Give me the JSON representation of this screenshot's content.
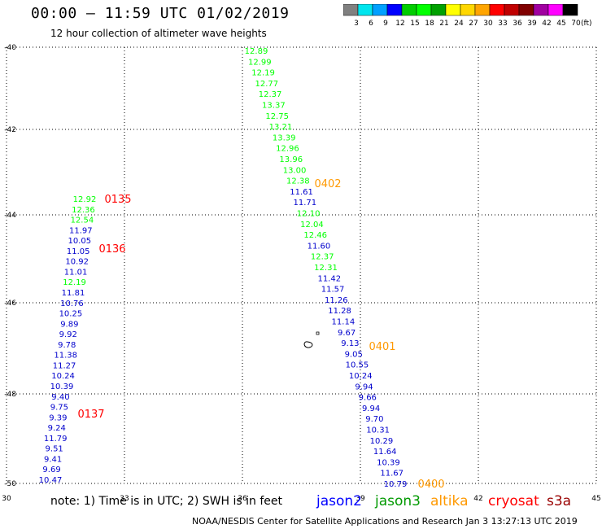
{
  "title": "00:00 – 11:59 UTC 01/02/2019",
  "subtitle": "12 hour collection of altimeter wave heights",
  "colorbar": {
    "labels": [
      "3",
      "6",
      "9",
      "12",
      "15",
      "18",
      "21",
      "24",
      "27",
      "30",
      "33",
      "36",
      "39",
      "42",
      "45",
      "70"
    ],
    "unit": "(ft)",
    "colors": [
      "#808080",
      "#00e5ee",
      "#00a0ff",
      "#0000ff",
      "#00cd00",
      "#00ff00",
      "#00a000",
      "#ffff00",
      "#ffd700",
      "#ffa500",
      "#ff0000",
      "#c00000",
      "#800000",
      "#a000a0",
      "#ff00ff",
      "#000000"
    ]
  },
  "axes": {
    "x_ticks": [
      "30",
      "33",
      "36",
      "39",
      "42",
      "45"
    ],
    "y_ticks": [
      "-40",
      "-42",
      "-44",
      "-46",
      "-48",
      "-50"
    ]
  },
  "tracks": [
    {
      "points": [
        {
          "v": "12.89",
          "c": "#00ff00"
        },
        {
          "v": "12.99",
          "c": "#00ff00"
        },
        {
          "v": "12.19",
          "c": "#00ff00"
        },
        {
          "v": "12.77",
          "c": "#00ff00"
        },
        {
          "v": "12.37",
          "c": "#00ff00"
        },
        {
          "v": "13.37",
          "c": "#00ff00"
        },
        {
          "v": "12.75",
          "c": "#00ff00"
        },
        {
          "v": "13.21",
          "c": "#00ff00"
        },
        {
          "v": "13.39",
          "c": "#00ff00"
        },
        {
          "v": "12.96",
          "c": "#00ff00"
        },
        {
          "v": "13.96",
          "c": "#00ff00"
        },
        {
          "v": "13.00",
          "c": "#00ff00"
        },
        {
          "v": "12.38",
          "c": "#00ff00"
        },
        {
          "v": "11.61",
          "c": "#0000cc"
        },
        {
          "v": "11.71",
          "c": "#0000cc"
        },
        {
          "v": "12.10",
          "c": "#00ff00"
        },
        {
          "v": "12.04",
          "c": "#00ff00"
        },
        {
          "v": "12.46",
          "c": "#00ff00"
        },
        {
          "v": "11.60",
          "c": "#0000cc"
        },
        {
          "v": "12.37",
          "c": "#00ff00"
        },
        {
          "v": "12.31",
          "c": "#00ff00"
        },
        {
          "v": "11.42",
          "c": "#0000cc"
        },
        {
          "v": "11.57",
          "c": "#0000cc"
        },
        {
          "v": "11.26",
          "c": "#0000cc"
        },
        {
          "v": "11.28",
          "c": "#0000cc"
        },
        {
          "v": "11.14",
          "c": "#0000cc"
        },
        {
          "v": "9.67",
          "c": "#0000cc"
        },
        {
          "v": "9.13",
          "c": "#0000cc"
        },
        {
          "v": "9.05",
          "c": "#0000cc"
        },
        {
          "v": "10.55",
          "c": "#0000cc"
        },
        {
          "v": "10.24",
          "c": "#0000cc"
        },
        {
          "v": "9.94",
          "c": "#0000cc"
        },
        {
          "v": "9.66",
          "c": "#0000cc"
        },
        {
          "v": "9.94",
          "c": "#0000cc"
        },
        {
          "v": "9.70",
          "c": "#0000cc"
        },
        {
          "v": "10.31",
          "c": "#0000cc"
        },
        {
          "v": "10.29",
          "c": "#0000cc"
        },
        {
          "v": "11.64",
          "c": "#0000cc"
        },
        {
          "v": "10.39",
          "c": "#0000cc"
        },
        {
          "v": "11.67",
          "c": "#0000cc"
        },
        {
          "v": "10.79",
          "c": "#0000cc"
        }
      ]
    },
    {
      "points": [
        {
          "v": "12.92",
          "c": "#00ff00"
        },
        {
          "v": "12.36",
          "c": "#00ff00"
        },
        {
          "v": "12.54",
          "c": "#00ff00"
        },
        {
          "v": "11.97",
          "c": "#0000cc"
        },
        {
          "v": "10.05",
          "c": "#0000cc"
        },
        {
          "v": "11.05",
          "c": "#0000cc"
        },
        {
          "v": "10.92",
          "c": "#0000cc"
        },
        {
          "v": "11.01",
          "c": "#0000cc"
        },
        {
          "v": "12.19",
          "c": "#00ff00"
        },
        {
          "v": "11.81",
          "c": "#0000cc"
        },
        {
          "v": "10.76",
          "c": "#0000cc"
        },
        {
          "v": "10.25",
          "c": "#0000cc"
        },
        {
          "v": "9.89",
          "c": "#0000cc"
        },
        {
          "v": "9.92",
          "c": "#0000cc"
        },
        {
          "v": "9.78",
          "c": "#0000cc"
        },
        {
          "v": "11.38",
          "c": "#0000cc"
        },
        {
          "v": "11.27",
          "c": "#0000cc"
        },
        {
          "v": "10.24",
          "c": "#0000cc"
        },
        {
          "v": "10.39",
          "c": "#0000cc"
        },
        {
          "v": "9.40",
          "c": "#0000cc"
        },
        {
          "v": "9.75",
          "c": "#0000cc"
        },
        {
          "v": "9.39",
          "c": "#0000cc"
        },
        {
          "v": "9.24",
          "c": "#0000cc"
        },
        {
          "v": "11.79",
          "c": "#0000cc"
        },
        {
          "v": "9.51",
          "c": "#0000cc"
        },
        {
          "v": "9.41",
          "c": "#0000cc"
        },
        {
          "v": "9.69",
          "c": "#0000cc"
        },
        {
          "v": "10.47",
          "c": "#0000cc"
        }
      ]
    }
  ],
  "time_labels": [
    {
      "text": "0402",
      "c": "#ff9900"
    },
    {
      "text": "0401",
      "c": "#ff9900"
    },
    {
      "text": "0400",
      "c": "#ff9900"
    },
    {
      "text": "0135",
      "c": "#ff0000"
    },
    {
      "text": "0136",
      "c": "#ff0000"
    },
    {
      "text": "0137",
      "c": "#ff0000"
    }
  ],
  "legend": {
    "note": "note:  1) Time is in UTC; 2) SWH is in feet",
    "satellites": [
      {
        "name": "jason2",
        "color": "#0000ff"
      },
      {
        "name": "jason3",
        "color": "#009900"
      },
      {
        "name": "altika",
        "color": "#ff9900"
      },
      {
        "name": "cryosat",
        "color": "#ff0000"
      },
      {
        "name": "s3a",
        "color": "#990000"
      }
    ]
  },
  "footer": "NOAA/NESDIS Center for Satellite Applications and Research    Jan  3 13:27:13 UTC 2019"
}
